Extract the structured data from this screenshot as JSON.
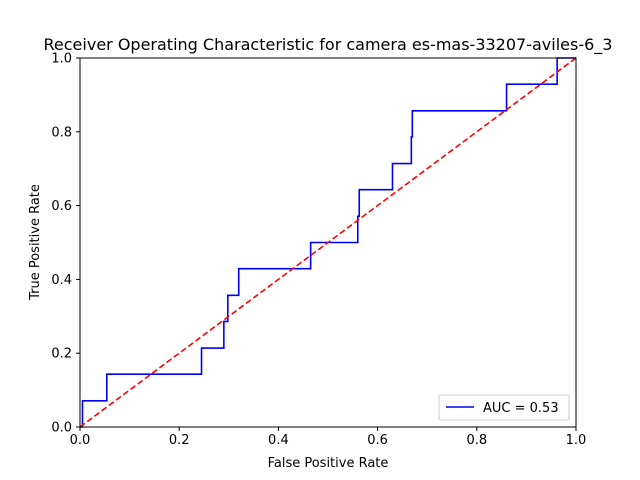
{
  "chart_data": {
    "type": "line",
    "title": "Receiver Operating Characteristic for camera es-mas-33207-aviles-6_3",
    "xlabel": "False Positive Rate",
    "ylabel": "True Positive Rate",
    "xlim": [
      0,
      1
    ],
    "ylim": [
      0,
      1
    ],
    "xticks": [
      "0.0",
      "0.2",
      "0.4",
      "0.6",
      "0.8",
      "1.0"
    ],
    "yticks": [
      "0.0",
      "0.2",
      "0.4",
      "0.6",
      "0.8",
      "1.0"
    ],
    "grid": false,
    "legend_position": "lower-right",
    "series": [
      {
        "name": "AUC = 0.53",
        "color": "#0000ff",
        "style": "solid",
        "x": [
          0.0,
          0.0,
          0.005,
          0.005,
          0.054,
          0.054,
          0.245,
          0.245,
          0.29,
          0.29,
          0.298,
          0.298,
          0.32,
          0.32,
          0.465,
          0.465,
          0.56,
          0.56,
          0.563,
          0.563,
          0.63,
          0.63,
          0.668,
          0.668,
          0.67,
          0.67,
          0.86,
          0.86,
          0.962,
          0.962,
          1.0
        ],
        "y": [
          0.0,
          0.0,
          0.0,
          0.071,
          0.071,
          0.143,
          0.143,
          0.214,
          0.214,
          0.286,
          0.286,
          0.357,
          0.357,
          0.429,
          0.429,
          0.5,
          0.5,
          0.571,
          0.571,
          0.643,
          0.643,
          0.714,
          0.714,
          0.786,
          0.786,
          0.857,
          0.857,
          0.929,
          0.929,
          1.0,
          1.0
        ]
      },
      {
        "color": "#ff0000",
        "style": "dashed",
        "x": [
          0,
          1
        ],
        "y": [
          0,
          1
        ]
      }
    ]
  }
}
